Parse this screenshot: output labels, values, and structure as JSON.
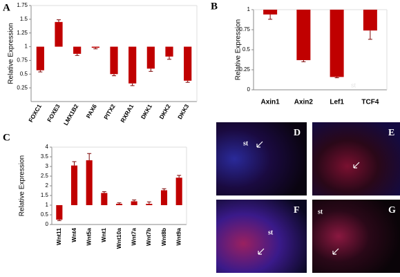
{
  "chart_data": [
    {
      "type": "bar",
      "label": "A",
      "y_label": "Relative Expression",
      "categories": [
        "FOXC1",
        "FOXE3",
        "LMX1B2",
        "PAX6",
        "PITX2",
        "RXRA1",
        "DKK1",
        "DKK2",
        "DKK3"
      ],
      "values": [
        0.57,
        1.45,
        0.87,
        0.98,
        0.5,
        0.33,
        0.6,
        0.82,
        0.38
      ],
      "errors": [
        0.03,
        0.04,
        0.03,
        0.02,
        0.03,
        0.04,
        0.05,
        0.05,
        0.03
      ],
      "baseline": 1,
      "color": "#c00000",
      "ylim": [
        0,
        1.75
      ],
      "yticks": [
        0.25,
        0.5,
        0.75,
        1,
        1.25,
        1.5,
        1.75
      ]
    },
    {
      "type": "bar",
      "label": "B",
      "y_label": "Relative Expression",
      "annotation": "st",
      "categories": [
        "Axin1",
        "Axin2",
        "Lef1",
        "TCF4"
      ],
      "values": [
        0.94,
        0.37,
        0.16,
        0.74
      ],
      "errors": [
        0.06,
        0.02,
        0.01,
        0.11
      ],
      "baseline": 1,
      "color": "#c00000",
      "ylim": [
        0,
        1
      ],
      "yticks": [
        0,
        0.25,
        0.5,
        0.75,
        1
      ]
    },
    {
      "type": "bar",
      "label": "C",
      "y_label": "Relative Expression",
      "categories": [
        "Wnt11",
        "Wnt4",
        "Wnt5a",
        "Wnt1",
        "Wnt10a",
        "Wnt7a",
        "Wnt7b",
        "Wnt8b",
        "Wnt9a"
      ],
      "values": [
        0.25,
        3.05,
        3.32,
        1.63,
        1.07,
        1.2,
        1.07,
        1.77,
        2.42
      ],
      "errors": [
        0.05,
        0.2,
        0.35,
        0.07,
        0.05,
        0.07,
        0.1,
        0.08,
        0.12
      ],
      "baseline": 1,
      "color": "#c00000",
      "ylim": [
        0,
        4
      ],
      "yticks": [
        0,
        0.5,
        1,
        1.5,
        2,
        2.5,
        3,
        3.5,
        4
      ]
    }
  ],
  "images": [
    {
      "label": "D",
      "annotation": "st"
    },
    {
      "label": "E"
    },
    {
      "label": "F",
      "annotation": "st"
    },
    {
      "label": "G",
      "annotation": "st"
    }
  ]
}
